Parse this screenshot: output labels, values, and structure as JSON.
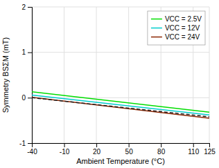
{
  "chart_data": {
    "type": "line",
    "xlabel": "Ambient Temperature (°C)",
    "ylabel": "Symmetry BSΣM (mT)",
    "x": [
      -40,
      125
    ],
    "xlim": [
      -40,
      125
    ],
    "ylim": [
      -1,
      2
    ],
    "xticks": [
      -40,
      -10,
      20,
      50,
      80,
      110,
      125
    ],
    "yticks": [
      -1,
      0,
      1,
      2
    ],
    "series": [
      {
        "name": "VCC = 2.5V",
        "color": "#00dd00",
        "line_style": "solid",
        "values": [
          0.13,
          -0.32
        ]
      },
      {
        "name": "VCC = 12V",
        "color": "#00cccc",
        "line_style": "solid",
        "values": [
          0.06,
          -0.38
        ]
      },
      {
        "name": "VCC = 24V",
        "color": "#8B2500",
        "line_style": "solid",
        "values": [
          0.01,
          -0.45
        ]
      },
      {
        "color": "#222222",
        "line_style": "dashed",
        "values": [
          0.0,
          -0.42
        ]
      }
    ],
    "legend": "upper right",
    "grid": true
  }
}
